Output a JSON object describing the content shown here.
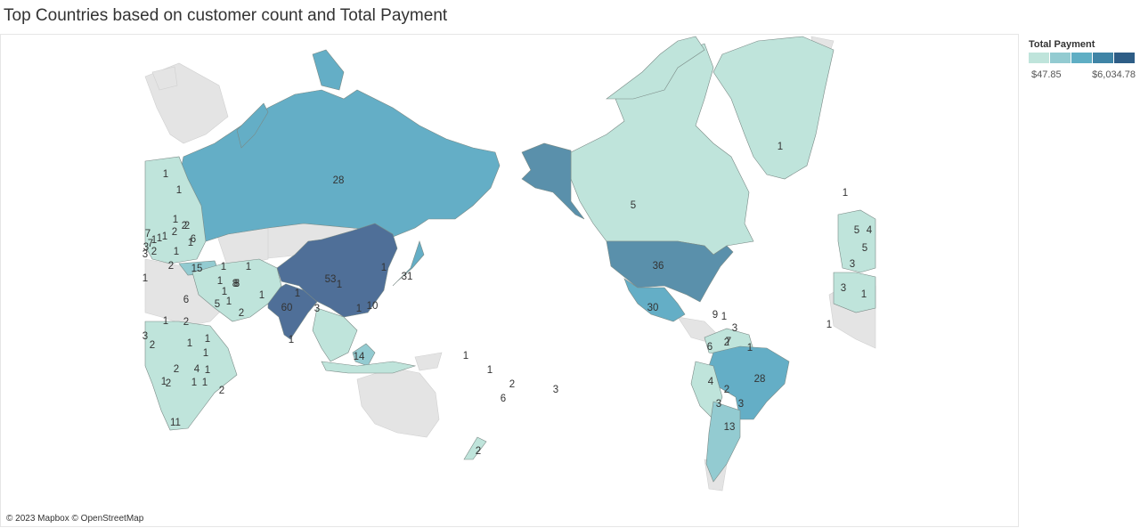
{
  "title": "Top Countries based on customer count and Total Payment",
  "attribution": "© 2023 Mapbox © OpenStreetMap",
  "legend": {
    "title": "Total Payment",
    "min_label": "$47.85",
    "max_label": "$6,034.78",
    "colors": [
      "#bfe4db",
      "#93cbd1",
      "#5faec4",
      "#3f84a6",
      "#2e5d86"
    ]
  },
  "colors": {
    "land_no_data": "#e4e4e4",
    "border": "#7a8a86",
    "level_1": "#bfe4db",
    "level_2": "#93cbd1",
    "level_3": "#64aec6",
    "level_4": "#5a90ab",
    "level_5": "#4f6f98"
  },
  "countries": [
    {
      "name": "Greenland",
      "customers": "1",
      "level": 1
    },
    {
      "name": "Canada",
      "customers": "5",
      "level": 1
    },
    {
      "name": "United States",
      "customers": "36",
      "level": 4
    },
    {
      "name": "Mexico",
      "customers": "30",
      "level": 3
    },
    {
      "name": "Brazil",
      "customers": "28",
      "level": 3
    },
    {
      "name": "Argentina",
      "customers": "13",
      "level": 2
    },
    {
      "name": "Russia",
      "customers": "28",
      "level": 3
    },
    {
      "name": "China",
      "customers": "53",
      "level": 5
    },
    {
      "name": "India",
      "customers": "60",
      "level": 5
    },
    {
      "name": "Japan",
      "customers": "31",
      "level": 3
    },
    {
      "name": "Philippines",
      "customers": "14",
      "level": 2
    },
    {
      "name": "Turkey",
      "customers": "15",
      "level": 2
    },
    {
      "name": "South Africa",
      "customers": "11",
      "level": 1
    },
    {
      "name": "Taiwan",
      "customers": "10",
      "level": 1
    },
    {
      "name": "Iran",
      "customers": "8",
      "level": 1
    },
    {
      "name": "Colombia",
      "customers": "6",
      "level": 1
    },
    {
      "name": "Venezuela",
      "customers": "7",
      "level": 1
    },
    {
      "name": "Peru",
      "customers": "4",
      "level": 1
    },
    {
      "name": "Bolivia",
      "customers": "2",
      "level": 1
    },
    {
      "name": "Paraguay",
      "customers": "3",
      "level": 1
    },
    {
      "name": "New Zealand",
      "customers": "1",
      "level": 1
    }
  ],
  "labels": [
    "1",
    "5",
    "36",
    "30",
    "28",
    "13",
    "28",
    "53",
    "60",
    "31",
    "14",
    "15",
    "11",
    "10",
    "8",
    "6",
    "7",
    "4",
    "2",
    "3",
    "3",
    "3",
    "1",
    "1",
    "1",
    "1",
    "1",
    "1",
    "2",
    "1",
    "2",
    "1",
    "1",
    "1",
    "1",
    "2",
    "6",
    "3",
    "2",
    "1",
    "1",
    "1",
    "1",
    "1",
    "5",
    "1",
    "5",
    "2",
    "2",
    "1",
    "1",
    "2",
    "1",
    "1",
    "2",
    "4",
    "1",
    "2",
    "1",
    "8",
    "7",
    "1",
    "2",
    "6",
    "2",
    "7",
    "3",
    "3",
    "1",
    "1",
    "1",
    "1",
    "1",
    "1",
    "1",
    "2",
    "6",
    "3",
    "2",
    "3",
    "2",
    "1",
    "1",
    "9",
    "5",
    "4",
    "5",
    "3",
    "3",
    "1",
    "1"
  ]
}
